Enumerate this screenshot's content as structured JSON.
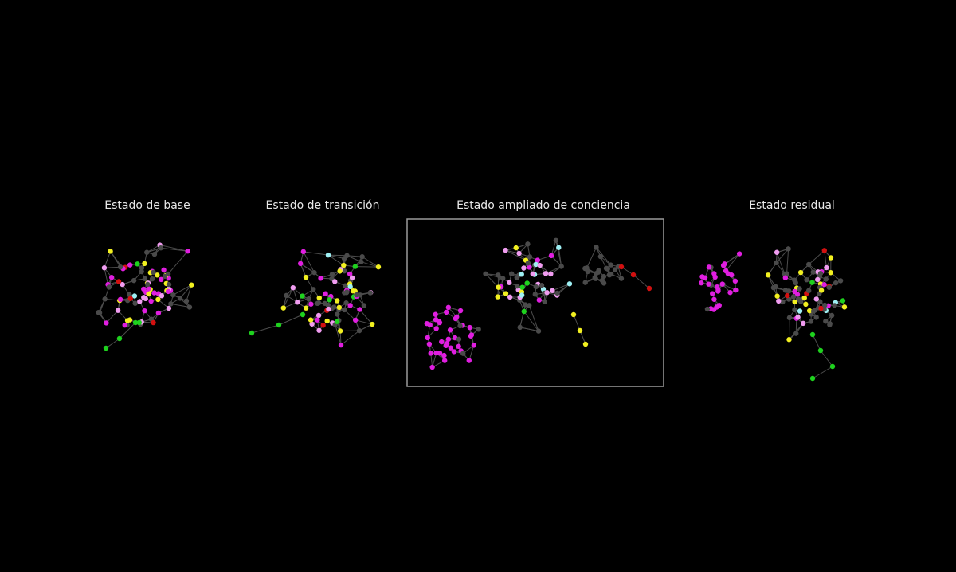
{
  "panels": [
    {
      "title": "Estado de base"
    },
    {
      "title": "Estado de transición"
    },
    {
      "title": "Estado ampliado de conciencia"
    },
    {
      "title": "Estado residual"
    }
  ]
}
